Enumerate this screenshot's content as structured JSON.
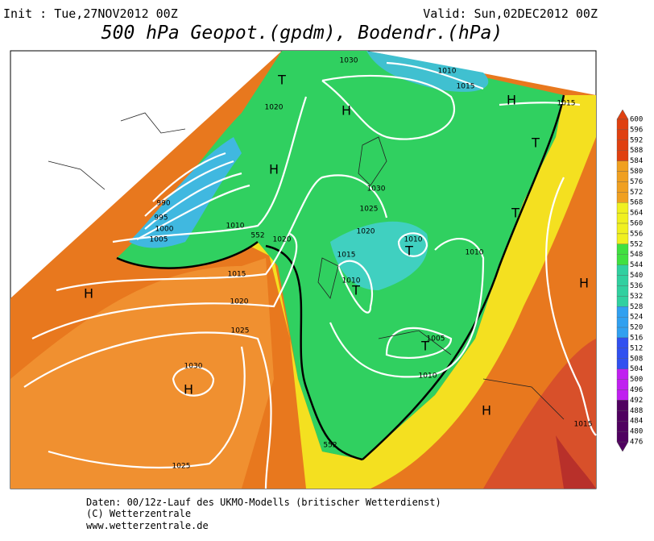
{
  "header": {
    "init": "Init : Tue,27NOV2012 00Z",
    "valid": "Valid: Sun,02DEC2012 00Z",
    "title": "500 hPa Geopot.(gpdm), Bodendr.(hPa)"
  },
  "colorbar": {
    "labels": [
      600,
      596,
      592,
      588,
      584,
      580,
      576,
      572,
      568,
      564,
      560,
      556,
      552,
      548,
      544,
      540,
      536,
      532,
      528,
      524,
      520,
      516,
      512,
      508,
      504,
      500,
      496,
      492,
      488,
      484,
      480,
      476
    ]
  },
  "map_labels": [
    "H",
    "T",
    "T",
    "H",
    "H",
    "H",
    "T",
    "T",
    "T",
    "H",
    "H",
    "H",
    "T",
    "1030",
    "1010",
    "1015",
    "1015",
    "1020",
    "990",
    "995",
    "1000",
    "1005",
    "1010",
    "1020",
    "1015",
    "1020",
    "1025",
    "1030",
    "1025",
    "1030",
    "1025",
    "1020",
    "1015",
    "1010",
    "1010",
    "1010",
    "1005",
    "1010",
    "1015",
    "552",
    "552"
  ],
  "footer": [
    "Daten: 00/12z-Lauf des UKMO-Modells (britischer Wetterdienst)",
    "(C) Wetterzentrale",
    "www.wetterzentrale.de"
  ]
}
